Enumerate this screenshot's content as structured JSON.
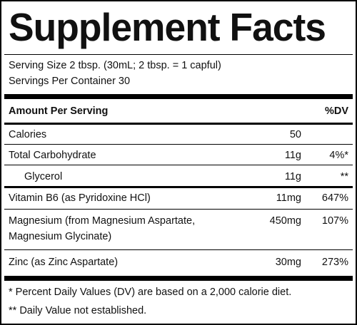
{
  "title": "Supplement Facts",
  "serving_size": "Serving Size 2 tbsp. (30mL; 2 tbsp. = 1 capful)",
  "servings_per_container": "Servings Per Container 30",
  "header": {
    "amount_per_serving": "Amount Per Serving",
    "dv": "%DV"
  },
  "rows": [
    {
      "name": "Calories",
      "amount": "50",
      "dv": ""
    },
    {
      "name": "Total Carbohydrate",
      "amount": "11g",
      "dv": "4%*"
    },
    {
      "name": "Glycerol",
      "amount": "11g",
      "dv": "**"
    },
    {
      "name": "Vitamin B6 (as Pyridoxine HCl)",
      "amount": "11mg",
      "dv": "647%"
    },
    {
      "name_line1": "Magnesium (from Magnesium Aspartate,",
      "name_line2": "Magnesium Glycinate)",
      "amount": "450mg",
      "dv": "107%"
    },
    {
      "name": "Zinc (as Zinc Aspartate)",
      "amount": "30mg",
      "dv": "273%"
    }
  ],
  "footnotes": [
    "* Percent Daily Values (DV) are based on a 2,000 calorie diet.",
    "** Daily Value not established."
  ]
}
